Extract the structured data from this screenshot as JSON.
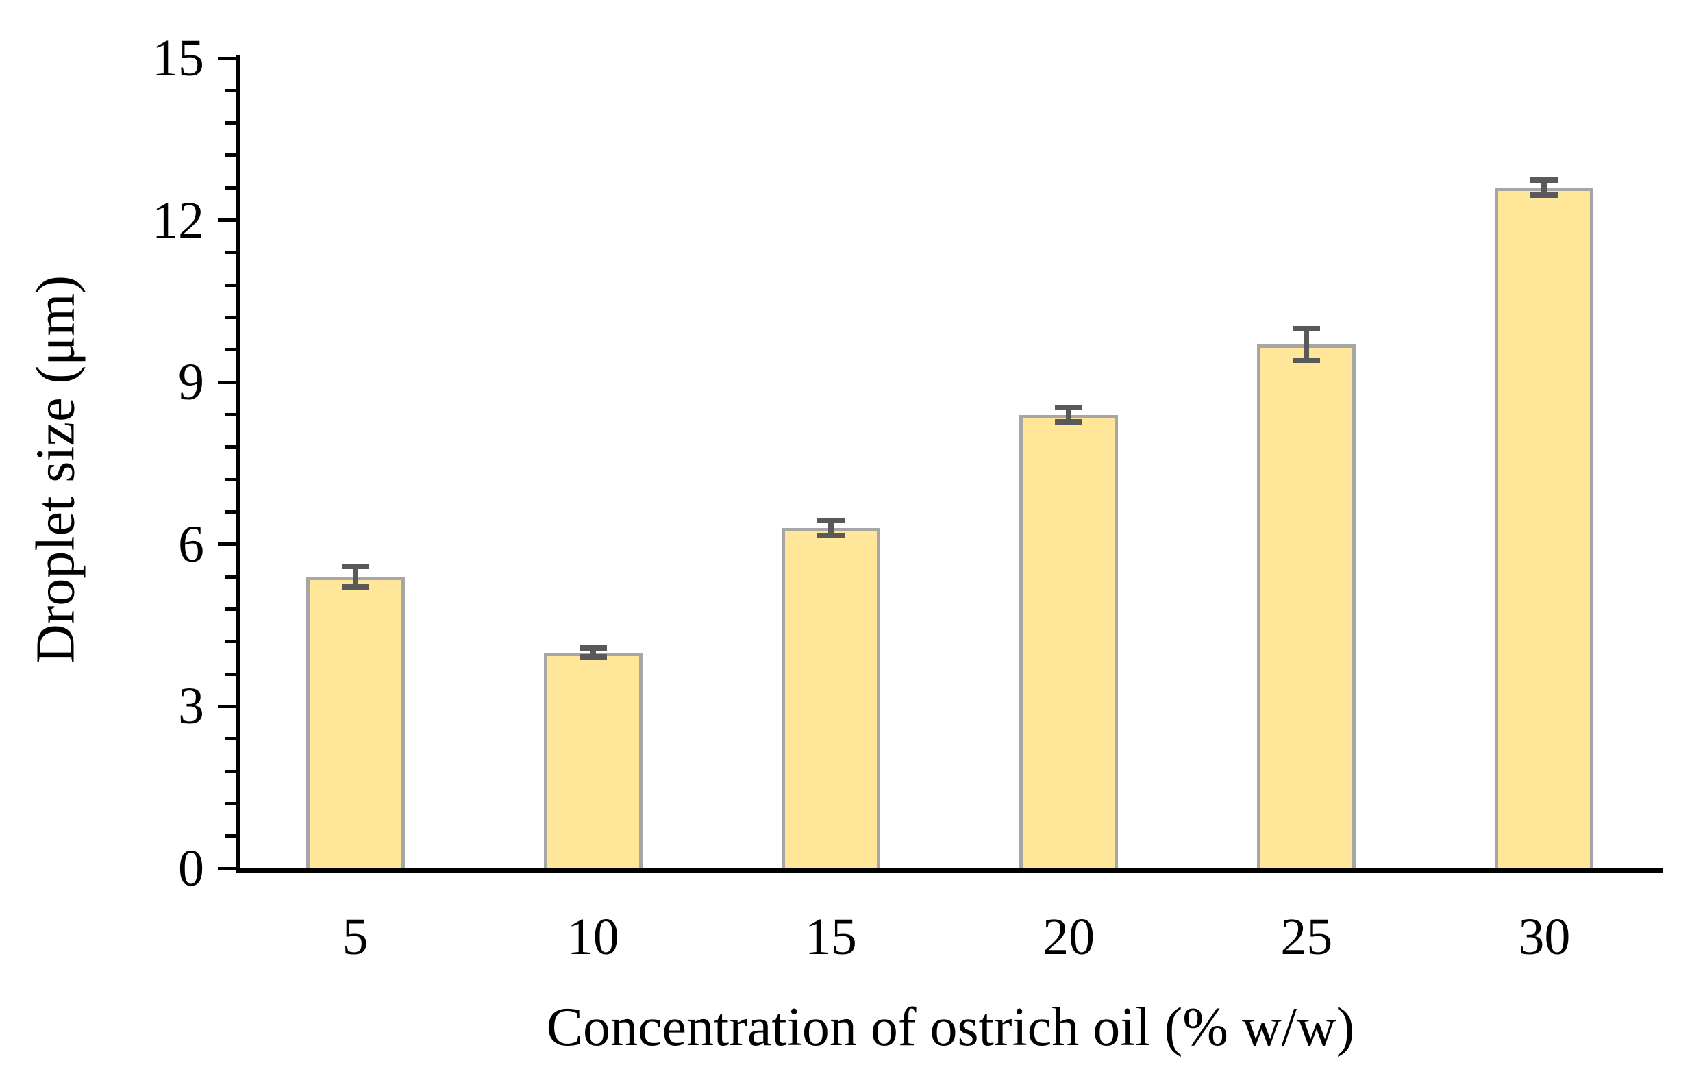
{
  "chart_data": {
    "type": "bar",
    "title": "",
    "categories": [
      "5",
      "10",
      "15",
      "20",
      "25",
      "30"
    ],
    "values": [
      5.4,
      4.0,
      6.3,
      8.4,
      9.7,
      12.6
    ],
    "error_bars": [
      0.15,
      0.05,
      0.1,
      0.1,
      0.25,
      0.1
    ],
    "xlabel": "Concentration of ostrich oil (% w/w)",
    "ylabel": "Droplet size (μm)",
    "ylim": [
      0,
      15
    ],
    "ytick_labels": [
      "0",
      "3",
      "6",
      "9",
      "12",
      "15"
    ],
    "ytick_major_step": 3,
    "ytick_minor_step": 0.6,
    "grid": false,
    "legend": "none",
    "colors": {
      "bar_fill": "#FFE699",
      "bar_border": "#A6A6A6",
      "error_bar": "#595959",
      "axis": "#000000",
      "text": "#000000"
    }
  }
}
